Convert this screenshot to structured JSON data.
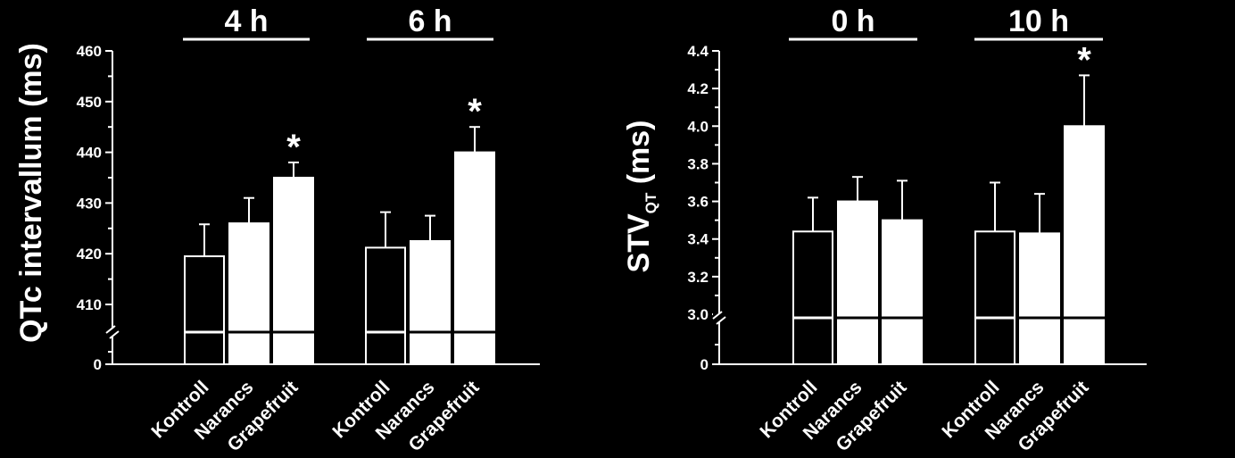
{
  "chart_data": [
    {
      "type": "bar",
      "ylabel": "QTc intervallum (ms)",
      "ylim": [
        0,
        460
      ],
      "axis_break": true,
      "yticks": [
        "0",
        "410",
        "420",
        "430",
        "440",
        "450",
        "460"
      ],
      "groups": [
        {
          "label": "4 h",
          "categories": [
            "Kontroll",
            "Narancs",
            "Grapefruit"
          ],
          "values": [
            419.5,
            426.0,
            435.0
          ],
          "errors": [
            6.3,
            5.0,
            3.0
          ],
          "fills": [
            "open",
            "filled",
            "filled"
          ],
          "significance": [
            "",
            "",
            "*"
          ]
        },
        {
          "label": "6 h",
          "categories": [
            "Kontroll",
            "Narancs",
            "Grapefruit"
          ],
          "values": [
            421.2,
            422.5,
            440.0
          ],
          "errors": [
            7.0,
            5.0,
            5.0
          ],
          "fills": [
            "open",
            "filled",
            "filled"
          ],
          "significance": [
            "",
            "",
            "*"
          ]
        }
      ]
    },
    {
      "type": "bar",
      "ylabel_main": "STV",
      "ylabel_sub": "QT",
      "ylabel_unit": " (ms)",
      "ylim": [
        0,
        4.4
      ],
      "axis_break": true,
      "yticks": [
        "0",
        "3.0",
        "3.2",
        "3.4",
        "3.6",
        "3.8",
        "4.0",
        "4.2",
        "4.4"
      ],
      "groups": [
        {
          "label": "0 h",
          "categories": [
            "Kontroll",
            "Narancs",
            "Grapefruit"
          ],
          "values": [
            3.44,
            3.6,
            3.5
          ],
          "errors": [
            0.18,
            0.13,
            0.21
          ],
          "fills": [
            "open",
            "filled",
            "filled"
          ],
          "significance": [
            "",
            "",
            ""
          ]
        },
        {
          "label": "10 h",
          "categories": [
            "Kontroll",
            "Narancs",
            "Grapefruit"
          ],
          "values": [
            3.44,
            3.43,
            4.0
          ],
          "errors": [
            0.26,
            0.21,
            0.27
          ],
          "fills": [
            "open",
            "filled",
            "filled"
          ],
          "significance": [
            "",
            "",
            "*"
          ]
        }
      ]
    }
  ]
}
